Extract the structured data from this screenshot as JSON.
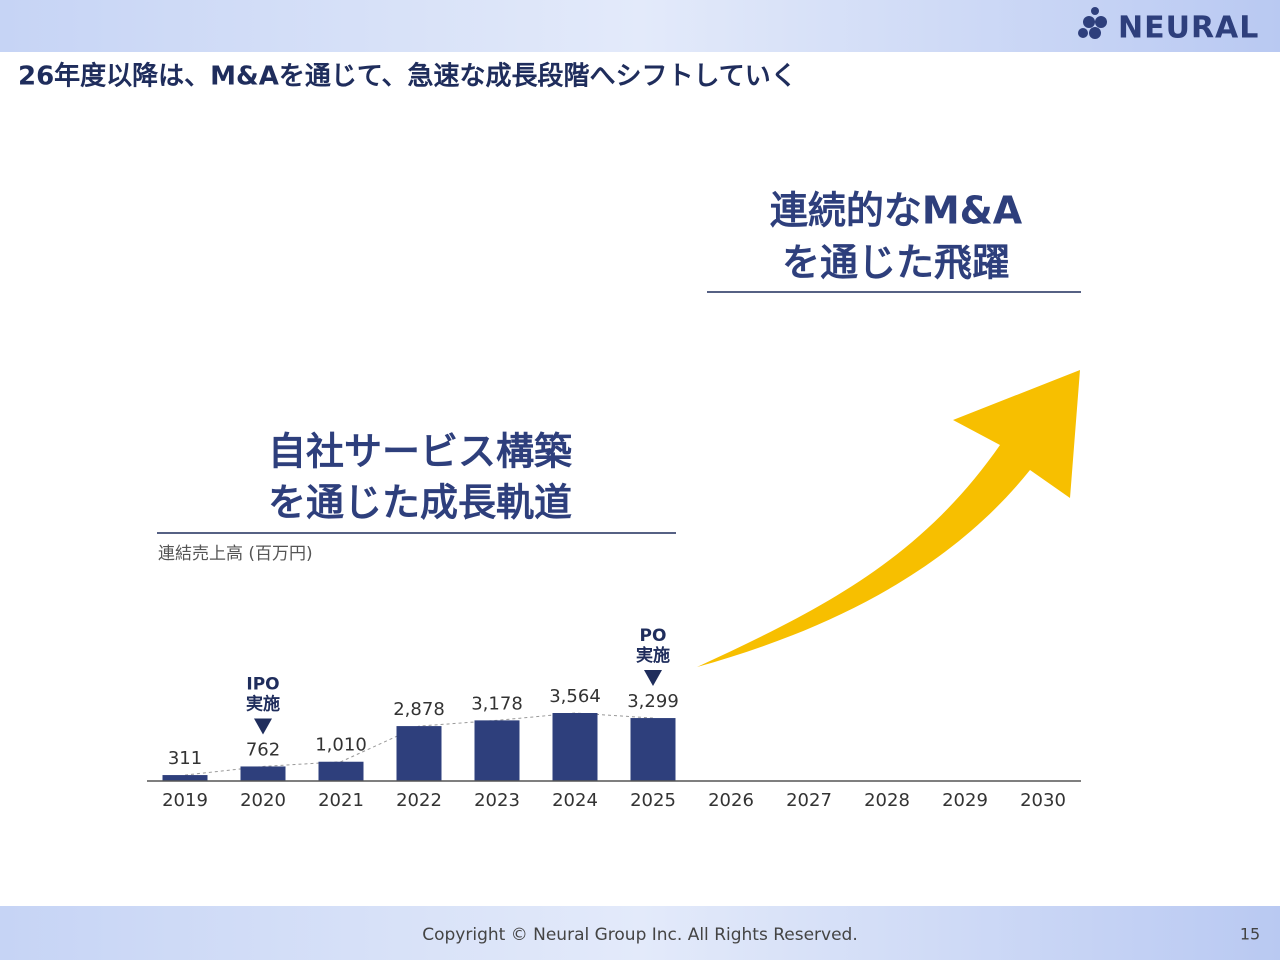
{
  "header": {
    "title": "26年度以降は、M&Aを通じて、急速な成長段階へシフトしていく",
    "logo": "NEURAL"
  },
  "callouts": [
    {
      "lines": [
        "自社サービス構築",
        "を通じた成長軌道"
      ]
    },
    {
      "lines": [
        "連続的なM&A",
        "を通じた飛躍"
      ]
    }
  ],
  "chart_data": {
    "type": "bar",
    "y_label": "連結売上高 (百万円)",
    "categories": [
      "2019",
      "2020",
      "2021",
      "2022",
      "2023",
      "2024",
      "2025",
      "2026",
      "2027",
      "2028",
      "2029",
      "2030"
    ],
    "values": [
      311,
      762,
      1010,
      2878,
      3178,
      3564,
      3299,
      null,
      null,
      null,
      null,
      null
    ],
    "value_labels": [
      "311",
      "762",
      "1,010",
      "2,878",
      "3,178",
      "3,564",
      "3,299",
      null,
      null,
      null,
      null,
      null
    ],
    "color": "#2e3f7c",
    "annotations": [
      {
        "x": "2020",
        "lines": [
          "IPO",
          "実施"
        ]
      },
      {
        "x": "2025",
        "lines": [
          "PO",
          "実施"
        ]
      }
    ]
  },
  "footer": {
    "copyright": "Copyright © Neural Group Inc. All Rights Reserved.",
    "page": "15"
  }
}
